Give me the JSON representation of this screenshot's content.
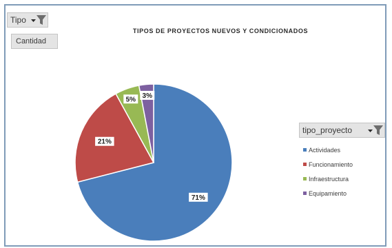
{
  "filter_field": {
    "label": "Tipo"
  },
  "value_field": {
    "label": "Cantidad"
  },
  "legend_field": {
    "label": "tipo_proyecto"
  },
  "chart_data": {
    "type": "pie",
    "title": "TIPOS DE PROYECTOS NUEVOS Y CONDICIONADOS",
    "categories": [
      "Actividades",
      "Funcionamiento",
      "Infraestructura",
      "Equipamiento"
    ],
    "values": [
      71,
      21,
      5,
      3
    ],
    "data_labels": [
      "71%",
      "21%",
      "5%",
      "3%"
    ],
    "colors": [
      "#4a7ebb",
      "#be4b48",
      "#98b954",
      "#7d60a0"
    ],
    "legend_position": "right"
  }
}
